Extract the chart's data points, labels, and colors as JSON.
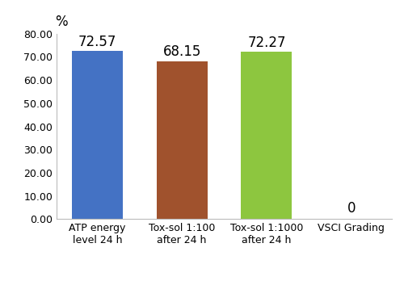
{
  "categories": [
    "ATP energy\nlevel 24 h",
    "Tox-sol 1:100\nafter 24 h",
    "Tox-sol 1:1000\nafter 24 h",
    "VSCI Grading"
  ],
  "values": [
    72.57,
    68.15,
    72.27,
    0
  ],
  "bar_colors": [
    "#4472C4",
    "#A0522D",
    "#8DC63F",
    "#FFFFFF"
  ],
  "bar_labels": [
    "72.57",
    "68.15",
    "72.27",
    "0"
  ],
  "ylabel": "%",
  "ylim": [
    0,
    80
  ],
  "yticks": [
    0.0,
    10.0,
    20.0,
    30.0,
    40.0,
    50.0,
    60.0,
    70.0,
    80.0
  ],
  "ytick_labels": [
    "0.00",
    "10.00",
    "20.00",
    "30.00",
    "40.00",
    "50.00",
    "60.00",
    "70.00",
    "80.00"
  ],
  "background_color": "#FFFFFF",
  "label_fontsize": 12,
  "tick_fontsize": 9,
  "bar_width": 0.6
}
